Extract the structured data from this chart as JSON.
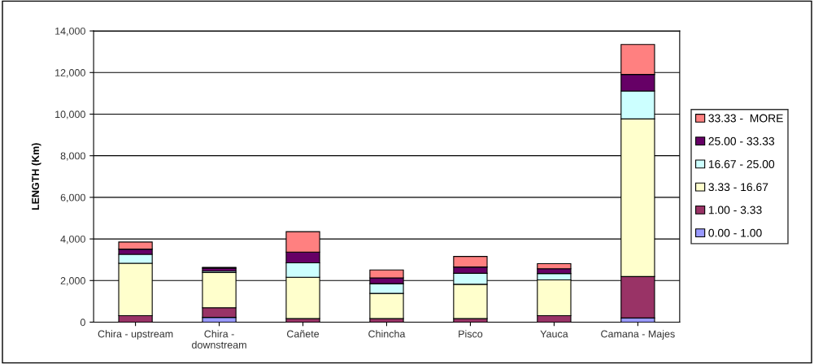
{
  "chart_data": {
    "type": "bar",
    "stacked": true,
    "ylabel": "LENGTH (Km)",
    "categories": [
      "Chira - upstream",
      "Chira -\ndownstream",
      "Cañete",
      "Chincha",
      "Pisco",
      "Yauca",
      "Camana - Majes"
    ],
    "series": [
      {
        "name": "0.00 - 1.00",
        "color": "#9999ff",
        "values": [
          null,
          230,
          null,
          null,
          null,
          null,
          200
        ]
      },
      {
        "name": "1.00 - 3.33",
        "color": "#993366",
        "values": [
          310,
          460,
          170,
          170,
          170,
          310,
          1990
        ]
      },
      {
        "name": "3.33 - 16.67",
        "color": "#ffffcc",
        "values": [
          2520,
          1690,
          1990,
          1210,
          1650,
          1720,
          7580
        ]
      },
      {
        "name": "16.67 - 25.00",
        "color": "#ccffff",
        "values": [
          430,
          70,
          690,
          470,
          530,
          310,
          1340
        ]
      },
      {
        "name": "25.00 - 33.33",
        "color": "#660066",
        "values": [
          250,
          150,
          520,
          280,
          300,
          230,
          800
        ]
      },
      {
        "name": "33.33 -  MORE",
        "color": "#ff8080",
        "values": [
          340,
          30,
          980,
          380,
          510,
          240,
          1440
        ]
      }
    ],
    "ylim": [
      0,
      14000
    ],
    "yticks": [
      {
        "value": 0,
        "label": "0"
      },
      {
        "value": 2000,
        "label": "2,000"
      },
      {
        "value": 4000,
        "label": "4,000"
      },
      {
        "value": 6000,
        "label": "6,000"
      },
      {
        "value": 8000,
        "label": "8,000"
      },
      {
        "value": 10000,
        "label": "10,000"
      },
      {
        "value": 12000,
        "label": "12,000"
      },
      {
        "value": 14000,
        "label": "14,000"
      }
    ],
    "grid": "y",
    "legend": "right"
  }
}
